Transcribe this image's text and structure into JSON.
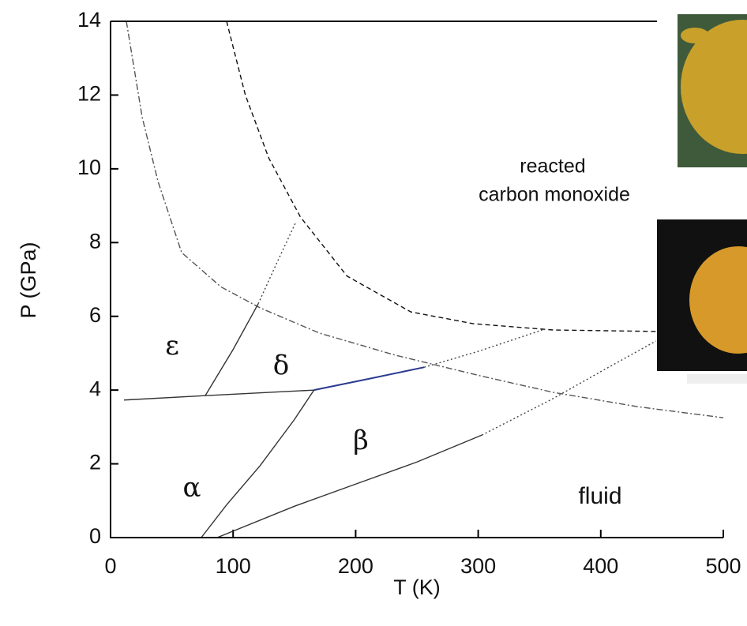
{
  "chart_data": {
    "type": "line",
    "x_label": "T (K)",
    "y_label": "P (GPa)",
    "xlim": [
      0,
      500
    ],
    "xticks": [
      0,
      100,
      200,
      300,
      400,
      500
    ],
    "ylim": [
      0,
      14
    ],
    "yticks": [
      0,
      2,
      4,
      6,
      8,
      10,
      12,
      14
    ],
    "annotations": [
      "ε",
      "δ",
      "β",
      "α",
      "fluid",
      "reacted",
      "carbon monoxide"
    ],
    "series": [
      {
        "style": "dashdot",
        "color": "#555555",
        "x": [
          12.9,
          25.8,
          38.7,
          58,
          90,
          122,
          170,
          232,
          300,
          361,
          430,
          500
        ],
        "values": [
          14,
          11.4,
          9.66,
          7.73,
          6.8,
          6.23,
          5.55,
          4.95,
          4.4,
          3.94,
          3.55,
          3.25
        ]
      },
      {
        "style": "dashed",
        "color": "#111111",
        "x": [
          94.7,
          110,
          129,
          155,
          193,
          245,
          296,
          361,
          445
        ],
        "values": [
          14,
          12,
          10.3,
          8.69,
          7.09,
          6.12,
          5.8,
          5.63,
          5.59
        ]
      },
      {
        "style": "solid",
        "color": "#333333",
        "x": [
          11,
          77.3,
          166
        ],
        "values": [
          3.73,
          3.85,
          4.0
        ]
      },
      {
        "style": "solid",
        "color": "#2b3a8f",
        "x": [
          166,
          210,
          256
        ],
        "values": [
          4.0,
          4.3,
          4.62
        ]
      },
      {
        "style": "dotted",
        "color": "#444444",
        "x": [
          256,
          300,
          354
        ],
        "values": [
          4.62,
          5.05,
          5.65
        ]
      },
      {
        "style": "solid",
        "color": "#333333",
        "x": [
          77.3,
          100,
          120.5
        ],
        "values": [
          3.85,
          5.1,
          6.34
        ]
      },
      {
        "style": "dotted",
        "color": "#444444",
        "x": [
          120.5,
          135,
          151
        ],
        "values": [
          6.34,
          7.4,
          8.54
        ]
      },
      {
        "style": "solid",
        "color": "#333333",
        "x": [
          166,
          150,
          122,
          95,
          74
        ],
        "values": [
          4.0,
          3.2,
          1.95,
          0.9,
          0
        ]
      },
      {
        "style": "solid",
        "color": "#333333",
        "x": [
          87,
          150,
          200,
          250,
          303
        ],
        "values": [
          0,
          0.85,
          1.45,
          2.05,
          2.78
        ]
      },
      {
        "style": "dotted",
        "color": "#444444",
        "x": [
          303,
          360,
          400,
          445
        ],
        "values": [
          2.78,
          3.75,
          4.5,
          5.33
        ]
      }
    ]
  }
}
